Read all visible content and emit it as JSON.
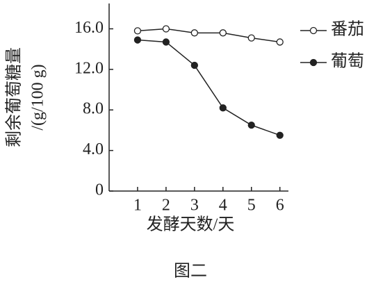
{
  "chart_data": {
    "type": "line",
    "y_label": "剩余葡萄糖量",
    "y_unit": "/(g/100 g)",
    "x_label": "发酵天数/天",
    "caption": "图二",
    "x": [
      1,
      2,
      3,
      4,
      5,
      6
    ],
    "xlim": [
      0,
      6.3
    ],
    "xticks": [
      1,
      2,
      3,
      4,
      5,
      6
    ],
    "ylim": [
      0,
      18.5
    ],
    "yticks": [
      0,
      {
        "value": 4,
        "label": "4.0"
      },
      {
        "value": 8,
        "label": "8.0"
      },
      {
        "value": 12,
        "label": "12.0"
      },
      {
        "value": 16,
        "label": "16.0"
      }
    ],
    "grid": false,
    "legend": "top-right",
    "series": [
      {
        "name": "番茄",
        "color": "#222222",
        "marker": "open",
        "values": [
          15.8,
          16.0,
          15.6,
          15.6,
          15.1,
          14.7
        ]
      },
      {
        "name": "葡萄",
        "color": "#222222",
        "marker": "filled",
        "values": [
          14.9,
          14.7,
          12.4,
          8.2,
          6.5,
          5.5
        ]
      }
    ]
  }
}
